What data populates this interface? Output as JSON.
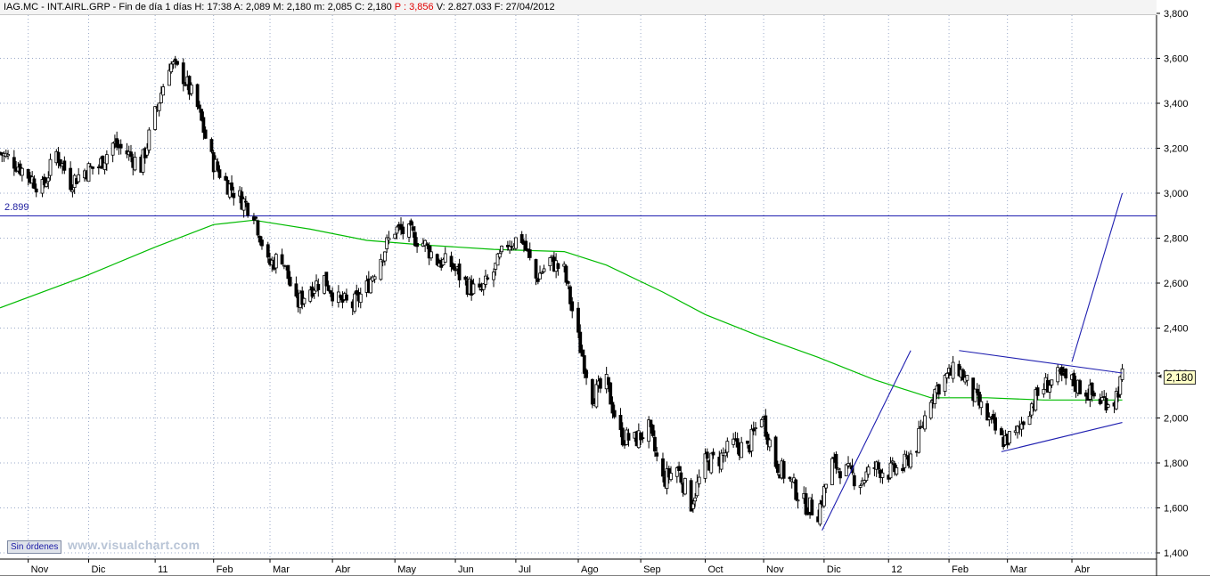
{
  "info_bar": {
    "text_main": "IAG.MC - INT.AIRL.GRP - Fin de día 1 días  H: 17:38  A: 2,089  M: 2,180  m: 2,085  C: 2,180",
    "text_p": "P : 3,856",
    "text_rest": "V: 2.827.033  F: 27/04/2012"
  },
  "orders_button": "Sin órdenes",
  "watermark": "www.visualchart.com",
  "last_price_label": "2,180",
  "level_line_label": "2.899",
  "colors": {
    "candle": "#000000",
    "moving_average": "#00bb00",
    "trendline": "#1f1fb0",
    "level": "#1f1fb0"
  },
  "chart_data": {
    "type": "candlestick",
    "title": "",
    "xlabel": "",
    "ylabel": "",
    "ylim": [
      1.4,
      3.8
    ],
    "grid": true,
    "y_ticks": [
      "1,400",
      "1,600",
      "1,800",
      "2,000",
      "2,200",
      "2,400",
      "2,600",
      "2,800",
      "3,000",
      "3,200",
      "3,400",
      "3,600",
      "3,800"
    ],
    "x_ticks": [
      {
        "label": "Nov",
        "date": "2010-11-01"
      },
      {
        "label": "Dic",
        "date": "2010-12-01"
      },
      {
        "label": "11",
        "date": "2011-01-03"
      },
      {
        "label": "Feb",
        "date": "2011-02-01"
      },
      {
        "label": "Mar",
        "date": "2011-03-01"
      },
      {
        "label": "Abr",
        "date": "2011-04-01"
      },
      {
        "label": "May",
        "date": "2011-05-02"
      },
      {
        "label": "Jun",
        "date": "2011-06-01"
      },
      {
        "label": "Jul",
        "date": "2011-07-01"
      },
      {
        "label": "Ago",
        "date": "2011-08-01"
      },
      {
        "label": "Sep",
        "date": "2011-09-01"
      },
      {
        "label": "Oct",
        "date": "2011-10-03"
      },
      {
        "label": "Nov",
        "date": "2011-11-01"
      },
      {
        "label": "Dic",
        "date": "2011-12-01"
      },
      {
        "label": "12",
        "date": "2012-01-02"
      },
      {
        "label": "Feb",
        "date": "2012-02-01"
      },
      {
        "label": "Mar",
        "date": "2012-03-01"
      },
      {
        "label": "Abr",
        "date": "2012-04-02"
      }
    ],
    "x_range": [
      "2010-10-18",
      "2012-05-14"
    ],
    "price_path": [
      [
        "2010-10-18",
        3.18
      ],
      [
        "2010-10-25",
        3.14
      ],
      [
        "2010-11-01",
        3.08
      ],
      [
        "2010-11-08",
        3.02
      ],
      [
        "2010-11-15",
        3.18
      ],
      [
        "2010-11-22",
        3.05
      ],
      [
        "2010-11-29",
        3.1
      ],
      [
        "2010-12-06",
        3.12
      ],
      [
        "2010-12-13",
        3.22
      ],
      [
        "2010-12-20",
        3.18
      ],
      [
        "2010-12-27",
        3.12
      ],
      [
        "2011-01-03",
        3.35
      ],
      [
        "2011-01-10",
        3.58
      ],
      [
        "2011-01-17",
        3.52
      ],
      [
        "2011-01-24",
        3.38
      ],
      [
        "2011-01-31",
        3.15
      ],
      [
        "2011-02-07",
        3.05
      ],
      [
        "2011-02-14",
        2.98
      ],
      [
        "2011-02-21",
        2.92
      ],
      [
        "2011-02-28",
        2.68
      ],
      [
        "2011-03-07",
        2.72
      ],
      [
        "2011-03-14",
        2.5
      ],
      [
        "2011-03-21",
        2.58
      ],
      [
        "2011-03-28",
        2.62
      ],
      [
        "2011-04-04",
        2.52
      ],
      [
        "2011-04-11",
        2.5
      ],
      [
        "2011-04-18",
        2.58
      ],
      [
        "2011-04-25",
        2.72
      ],
      [
        "2011-05-02",
        2.84
      ],
      [
        "2011-05-09",
        2.82
      ],
      [
        "2011-05-16",
        2.78
      ],
      [
        "2011-05-23",
        2.7
      ],
      [
        "2011-05-30",
        2.68
      ],
      [
        "2011-06-06",
        2.6
      ],
      [
        "2011-06-13",
        2.55
      ],
      [
        "2011-06-20",
        2.65
      ],
      [
        "2011-06-27",
        2.78
      ],
      [
        "2011-07-04",
        2.8
      ],
      [
        "2011-07-11",
        2.62
      ],
      [
        "2011-07-18",
        2.7
      ],
      [
        "2011-07-25",
        2.65
      ],
      [
        "2011-08-01",
        2.35
      ],
      [
        "2011-08-08",
        2.1
      ],
      [
        "2011-08-15",
        2.15
      ],
      [
        "2011-08-22",
        1.92
      ],
      [
        "2011-08-29",
        1.9
      ],
      [
        "2011-09-05",
        1.95
      ],
      [
        "2011-09-12",
        1.72
      ],
      [
        "2011-09-19",
        1.78
      ],
      [
        "2011-09-26",
        1.62
      ],
      [
        "2011-10-03",
        1.8
      ],
      [
        "2011-10-10",
        1.82
      ],
      [
        "2011-10-17",
        1.88
      ],
      [
        "2011-10-24",
        1.86
      ],
      [
        "2011-10-31",
        2.02
      ],
      [
        "2011-11-07",
        1.8
      ],
      [
        "2011-11-14",
        1.72
      ],
      [
        "2011-11-21",
        1.62
      ],
      [
        "2011-11-28",
        1.58
      ],
      [
        "2011-12-05",
        1.8
      ],
      [
        "2011-12-12",
        1.76
      ],
      [
        "2011-12-19",
        1.72
      ],
      [
        "2011-12-26",
        1.78
      ],
      [
        "2012-01-02",
        1.76
      ],
      [
        "2012-01-09",
        1.78
      ],
      [
        "2012-01-16",
        1.88
      ],
      [
        "2012-01-23",
        2.1
      ],
      [
        "2012-01-30",
        2.18
      ],
      [
        "2012-02-06",
        2.22
      ],
      [
        "2012-02-13",
        2.1
      ],
      [
        "2012-02-20",
        2.0
      ],
      [
        "2012-02-27",
        1.9
      ],
      [
        "2012-03-05",
        1.92
      ],
      [
        "2012-03-12",
        2.05
      ],
      [
        "2012-03-19",
        2.14
      ],
      [
        "2012-03-26",
        2.18
      ],
      [
        "2012-04-02",
        2.16
      ],
      [
        "2012-04-09",
        2.12
      ],
      [
        "2012-04-16",
        2.08
      ],
      [
        "2012-04-23",
        2.08
      ],
      [
        "2012-04-27",
        2.18
      ]
    ],
    "moving_average": {
      "color": "#00bb00",
      "points": [
        [
          "2010-10-18",
          2.49
        ],
        [
          "2010-11-29",
          2.63
        ],
        [
          "2011-01-03",
          2.76
        ],
        [
          "2011-02-01",
          2.86
        ],
        [
          "2011-02-21",
          2.88
        ],
        [
          "2011-03-21",
          2.84
        ],
        [
          "2011-04-18",
          2.79
        ],
        [
          "2011-05-16",
          2.77
        ],
        [
          "2011-06-20",
          2.75
        ],
        [
          "2011-07-25",
          2.74
        ],
        [
          "2011-08-15",
          2.68
        ],
        [
          "2011-09-12",
          2.56
        ],
        [
          "2011-10-03",
          2.46
        ],
        [
          "2011-10-31",
          2.36
        ],
        [
          "2011-11-28",
          2.27
        ],
        [
          "2011-12-26",
          2.17
        ],
        [
          "2012-01-23",
          2.09
        ],
        [
          "2012-02-20",
          2.09
        ],
        [
          "2012-03-19",
          2.08
        ],
        [
          "2012-04-16",
          2.08
        ],
        [
          "2012-04-27",
          2.08
        ]
      ]
    },
    "horizontal_level": 2.899,
    "trendlines": [
      {
        "from": [
          "2011-11-30",
          1.5
        ],
        "to": [
          "2012-01-13",
          2.3
        ]
      },
      {
        "from": [
          "2012-02-06",
          2.3
        ],
        "to": [
          "2012-04-27",
          2.2
        ]
      },
      {
        "from": [
          "2012-02-27",
          1.85
        ],
        "to": [
          "2012-04-27",
          1.98
        ]
      },
      {
        "from": [
          "2012-04-02",
          2.25
        ],
        "to": [
          "2012-04-27",
          3.0
        ]
      }
    ],
    "last_price": 2.18
  }
}
